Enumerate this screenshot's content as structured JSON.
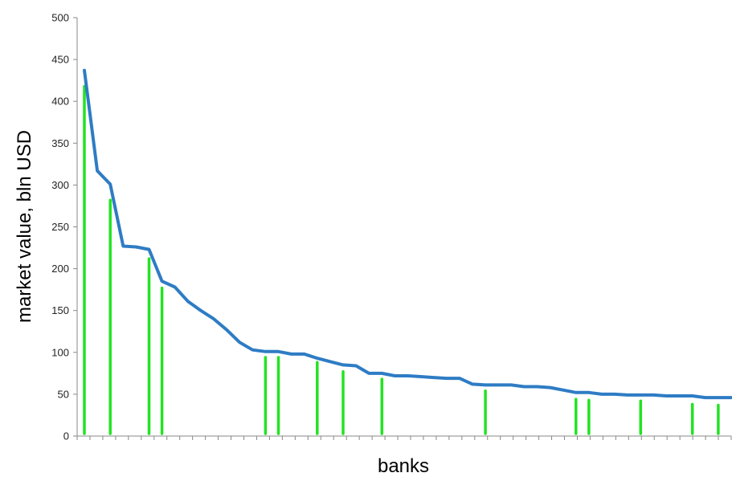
{
  "chart_data": {
    "type": "line",
    "xlabel": "banks",
    "ylabel": "market value, bln USD",
    "ylim": [
      0,
      500
    ],
    "yticks": [
      0,
      50,
      100,
      150,
      200,
      250,
      300,
      350,
      400,
      450,
      500
    ],
    "grid": false,
    "legend": "none",
    "series": [
      {
        "type": "line",
        "color": "#2e7cc4",
        "values": [
          437,
          317,
          301,
          227,
          226,
          223,
          185,
          178,
          161,
          150,
          140,
          127,
          112,
          103,
          101,
          101,
          98,
          98,
          93,
          89,
          85,
          84,
          75,
          75,
          72,
          72,
          71,
          70,
          69,
          69,
          62,
          61,
          61,
          61,
          59,
          59,
          58,
          55,
          52,
          52,
          50,
          50,
          49,
          49,
          49,
          48,
          48,
          48,
          46,
          46,
          46
        ]
      },
      {
        "type": "bar",
        "color": "#22e322",
        "bars": [
          {
            "index": 0,
            "value": 418
          },
          {
            "index": 2,
            "value": 282
          },
          {
            "index": 5,
            "value": 212
          },
          {
            "index": 6,
            "value": 177
          },
          {
            "index": 14,
            "value": 94
          },
          {
            "index": 15,
            "value": 94
          },
          {
            "index": 18,
            "value": 88
          },
          {
            "index": 20,
            "value": 77
          },
          {
            "index": 23,
            "value": 68
          },
          {
            "index": 31,
            "value": 54
          },
          {
            "index": 38,
            "value": 44
          },
          {
            "index": 39,
            "value": 43
          },
          {
            "index": 43,
            "value": 42
          },
          {
            "index": 47,
            "value": 38
          },
          {
            "index": 49,
            "value": 37
          }
        ]
      }
    ]
  }
}
